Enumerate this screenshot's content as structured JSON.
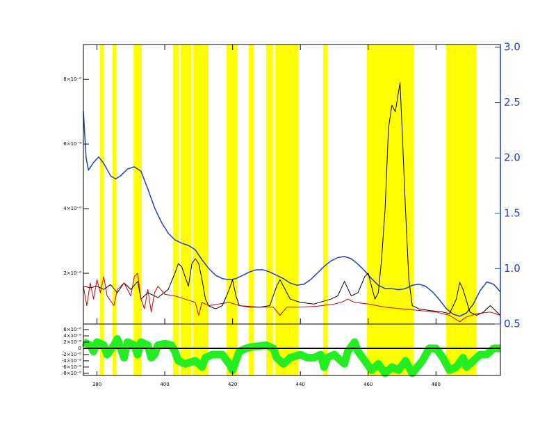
{
  "chart_data": [
    {
      "type": "line",
      "xlim": [
        376,
        499
      ],
      "ylim": [
        4.3e-07,
        9.08e-06
      ],
      "yticks": [
        {
          "value": 2e-06,
          "label": "2×10⁻⁶"
        },
        {
          "value": 4e-06,
          "label": "4×10⁻⁶"
        },
        {
          "value": 6e-06,
          "label": "6×10⁻⁶"
        },
        {
          "value": 8e-06,
          "label": "8×10⁻⁶"
        }
      ],
      "y2lim": [
        0.5,
        3.025
      ],
      "y2ticks": [
        0.5,
        {
          "value": 1.0,
          "label": "1.0"
        },
        1.5,
        {
          "value": 2.0,
          "label": "2.0"
        },
        2.5,
        {
          "value": 3.0,
          "label": "3.0"
        }
      ],
      "band_color": "#ffff00",
      "bands": [
        [
          380.9,
          382.1
        ],
        [
          384.6,
          385.8
        ],
        [
          390.8,
          393.2
        ],
        [
          402.4,
          404.1
        ],
        [
          404.7,
          407.8
        ],
        [
          408.2,
          412.9
        ],
        [
          418.2,
          421.5
        ],
        [
          424.8,
          426.2
        ],
        [
          429.9,
          431.9
        ],
        [
          432.6,
          439.5
        ],
        [
          446.7,
          448.1
        ],
        [
          459.6,
          473.5
        ],
        [
          483.0,
          492.0
        ]
      ],
      "series": [
        {
          "color": "#1f3fc8",
          "axis": "y2",
          "x": [
            376,
            376.8,
            377.5,
            379,
            380.5,
            382,
            384,
            385.5,
            387,
            389,
            391,
            393,
            395,
            397,
            399,
            401,
            403,
            405,
            407,
            409,
            411,
            413,
            415,
            417,
            419,
            421,
            423,
            425,
            427,
            429,
            431,
            433,
            435,
            437,
            439,
            441,
            443,
            445,
            447,
            449,
            451,
            453,
            455,
            457,
            459,
            461,
            463,
            465,
            467,
            469,
            471,
            473,
            475,
            477,
            479,
            481,
            483,
            485,
            487,
            489,
            491,
            493,
            495,
            497,
            499
          ],
          "values": [
            2.42,
            2.0,
            1.89,
            1.96,
            2.01,
            1.95,
            1.84,
            1.81,
            1.84,
            1.9,
            1.92,
            1.88,
            1.72,
            1.55,
            1.42,
            1.32,
            1.26,
            1.23,
            1.21,
            1.17,
            1.08,
            1.0,
            0.94,
            0.91,
            0.9,
            0.91,
            0.94,
            0.97,
            0.99,
            0.99,
            0.97,
            0.94,
            0.91,
            0.87,
            0.85,
            0.86,
            0.9,
            0.96,
            1.02,
            1.07,
            1.1,
            1.11,
            1.09,
            1.04,
            0.98,
            0.91,
            0.85,
            0.82,
            0.82,
            0.81,
            0.82,
            0.85,
            0.86,
            0.84,
            0.79,
            0.72,
            0.64,
            0.59,
            0.57,
            0.6,
            0.68,
            0.8,
            0.88,
            0.86,
            0.79
          ]
        },
        {
          "color": "#000000",
          "x": [
            376,
            378,
            380,
            382,
            384,
            386,
            388,
            390,
            392,
            393,
            395,
            398,
            401,
            403,
            404,
            405,
            406,
            407,
            408,
            409,
            410,
            411,
            412,
            413,
            415,
            417,
            419,
            420,
            421,
            422,
            425,
            428,
            431,
            433,
            434,
            435,
            437,
            440,
            444,
            449,
            451,
            453,
            455,
            457,
            459,
            460,
            461,
            462,
            463,
            464,
            465,
            466,
            467,
            468,
            469.4,
            470,
            471,
            472,
            473,
            475,
            478,
            482,
            484,
            486,
            487,
            488,
            490,
            492,
            494,
            496,
            498,
            499
          ],
          "values": [
            1.6e-06,
            1.55e-06,
            1.6e-06,
            1.5e-06,
            1.65e-06,
            1.4e-06,
            1.7e-06,
            1.5e-06,
            1.75e-06,
            1.2e-06,
            1.4e-06,
            1.25e-06,
            1.5e-06,
            2e-06,
            2.3e-06,
            2.2e-06,
            1.9e-06,
            1.6e-06,
            2.3e-06,
            2.45e-06,
            2.3e-06,
            1.8e-06,
            1.2e-06,
            9.9e-07,
            9e-07,
            1e-06,
            1.5e-06,
            1.8e-06,
            1.3e-06,
            1e-06,
            9.5e-07,
            9.5e-07,
            1e-06,
            1.6e-06,
            1.8e-06,
            1.6e-06,
            1.2e-06,
            1.1e-06,
            1.05e-06,
            1.2e-06,
            1.3e-06,
            1.75e-06,
            1.3e-06,
            1.4e-06,
            1.9e-06,
            2e-06,
            1.6e-06,
            1.2e-06,
            1.4e-06,
            2.5e-06,
            4e-06,
            6.5e-06,
            7.2e-06,
            7e-06,
            7.9e-06,
            6.5e-06,
            4e-06,
            1.8e-06,
            1e-06,
            9e-07,
            8.5e-07,
            8e-07,
            7.5e-07,
            1.2e-06,
            1.72e-06,
            1.5e-06,
            8e-07,
            7e-07,
            8e-07,
            1e-06,
            8e-07,
            7e-07
          ]
        },
        {
          "color": "#d00000",
          "x": [
            376,
            377,
            378,
            379,
            380,
            381,
            382,
            383,
            385,
            386,
            388,
            390,
            391,
            392,
            393,
            394,
            395,
            396,
            397,
            398,
            400,
            403,
            406,
            409,
            410,
            411,
            413,
            416,
            419,
            422,
            428,
            432,
            434,
            436,
            440,
            445,
            450,
            452,
            454,
            456,
            460,
            465,
            470,
            475,
            480,
            484,
            487,
            489,
            492,
            496,
            499
          ],
          "values": [
            1.6e-06,
            1e-06,
            1.7e-06,
            1.2e-06,
            1.8e-06,
            1.4e-06,
            1.9e-06,
            1.3e-06,
            1e-06,
            1.5e-06,
            1.7e-06,
            1.3e-06,
            1.9e-06,
            2e-06,
            1.2e-06,
            9e-07,
            1.5e-06,
            8e-07,
            1.4e-06,
            1.6e-06,
            1.35e-06,
            1.3e-06,
            1.2e-06,
            1.1e-06,
            7e-07,
            1.1e-06,
            1e-06,
            1.05e-06,
            1.1e-06,
            1e-06,
            9.5e-07,
            9.5e-07,
            7e-07,
            9.5e-07,
            9.5e-07,
            9.8e-07,
            1.05e-06,
            1.1e-06,
            1.2e-06,
            1.1e-06,
            1.05e-06,
            9.5e-07,
            9e-07,
            8.5e-07,
            8e-07,
            7e-07,
            5e-07,
            6.5e-07,
            7.5e-07,
            8e-07,
            7e-07
          ]
        }
      ]
    },
    {
      "type": "line",
      "xlim": [
        376,
        499
      ],
      "xticks": [
        380,
        400,
        420,
        440,
        460,
        480
      ],
      "ylim": [
        -8.7e-08,
        7.8e-08
      ],
      "yticks": [
        {
          "value": 6e-08,
          "label": "6×10⁻⁸"
        },
        {
          "value": 4e-08,
          "label": "4×10⁻⁸"
        },
        {
          "value": 2e-08,
          "label": "2×10⁻⁸"
        },
        0,
        {
          "value": -2e-08,
          "label": "-2×10⁻⁸"
        },
        {
          "value": -4e-08,
          "label": "-4×10⁻⁸"
        },
        {
          "value": -6e-08,
          "label": "-6×10⁻⁸"
        },
        {
          "value": -8e-08,
          "label": "-8×10⁻⁸"
        }
      ],
      "series": [
        {
          "color": "#22ee22",
          "x": [
            376,
            378,
            379,
            380,
            382,
            383,
            385,
            386,
            387,
            388,
            389,
            391,
            392,
            393,
            395,
            396,
            397,
            398,
            400,
            402,
            403,
            404,
            406,
            409,
            411,
            412,
            414,
            417,
            419,
            420,
            421,
            422,
            424,
            426,
            430,
            432,
            433,
            435,
            437,
            440,
            442,
            444,
            446,
            447,
            448,
            450,
            452,
            453,
            454,
            456,
            457,
            459,
            461,
            463,
            465,
            467,
            469,
            471,
            473,
            476,
            478,
            480,
            482,
            484,
            486,
            488,
            489,
            491,
            493,
            495,
            497,
            499
          ],
          "values": [
            2e-08,
            1e-08,
            -1e-08,
            2e-08,
            1e-08,
            -2e-08,
            1e-08,
            3e-08,
            0,
            -3e-08,
            2e-08,
            1e-08,
            -2e-08,
            2e-08,
            1e-08,
            -3e-08,
            -2e-08,
            1e-08,
            1.5e-08,
            1e-08,
            -1e-08,
            -4e-08,
            -5e-08,
            -4e-08,
            -6e-08,
            -3e-08,
            -2e-08,
            -2e-08,
            -5e-08,
            -7e-08,
            -4e-08,
            -1e-08,
            0,
            5e-09,
            1e-08,
            0,
            -3e-08,
            -5e-08,
            -3e-08,
            -2e-08,
            -3e-08,
            -3e-08,
            -2e-08,
            -6e-08,
            -3e-08,
            -2e-08,
            -4e-08,
            -5e-08,
            -1e-08,
            2e-08,
            -1e-08,
            -4e-08,
            -7e-08,
            -5e-08,
            -8e-08,
            -6e-08,
            -7e-08,
            -4e-08,
            -8e-08,
            -4e-08,
            0,
            0,
            -3e-08,
            -7e-08,
            -6e-08,
            -3e-08,
            -6e-08,
            -4e-08,
            -2e-08,
            -2e-08,
            0,
            0
          ]
        }
      ]
    }
  ]
}
